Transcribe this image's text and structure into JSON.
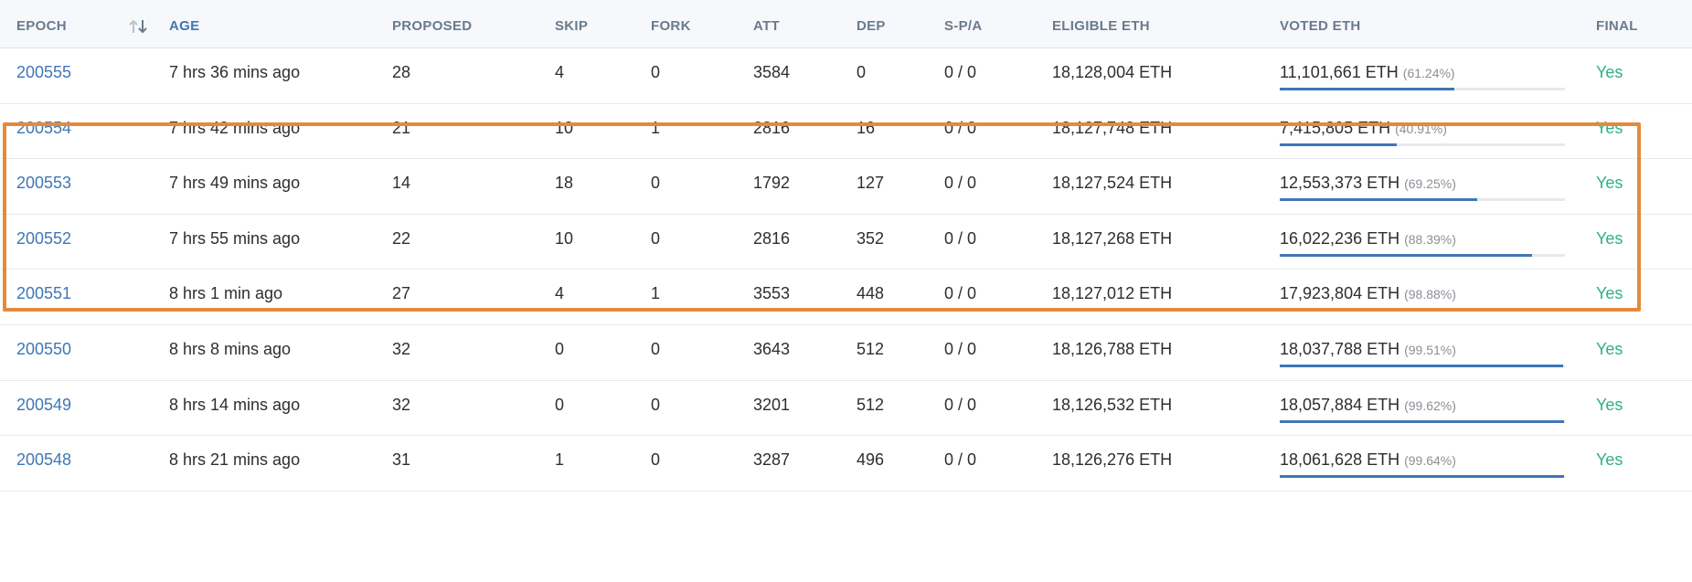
{
  "columns": [
    {
      "key": "epoch",
      "label": "EPOCH"
    },
    {
      "key": "age",
      "label": "AGE"
    },
    {
      "key": "proposed",
      "label": "PROPOSED"
    },
    {
      "key": "skip",
      "label": "SKIP"
    },
    {
      "key": "fork",
      "label": "FORK"
    },
    {
      "key": "att",
      "label": "ATT"
    },
    {
      "key": "dep",
      "label": "DEP"
    },
    {
      "key": "spa",
      "label": "S-P/A"
    },
    {
      "key": "eligible",
      "label": "ELIGIBLE ETH"
    },
    {
      "key": "voted",
      "label": "VOTED ETH"
    },
    {
      "key": "final",
      "label": "FINAL"
    }
  ],
  "sort_icon": "sort-arrows-icon",
  "rows": [
    {
      "epoch": "200555",
      "age": "7 hrs 36 mins ago",
      "proposed": "28",
      "skip": "4",
      "fork": "0",
      "att": "3584",
      "dep": "0",
      "spa": "0 / 0",
      "eligible": "18,128,004 ETH",
      "voted": "11,101,661 ETH",
      "voted_pct": "(61.24%)",
      "voted_fraction": 0.6124,
      "final": "Yes"
    },
    {
      "epoch": "200554",
      "age": "7 hrs 42 mins ago",
      "proposed": "21",
      "skip": "10",
      "fork": "1",
      "att": "2816",
      "dep": "16",
      "spa": "0 / 0",
      "eligible": "18,127,748 ETH",
      "voted": "7,415,805 ETH",
      "voted_pct": "(40.91%)",
      "voted_fraction": 0.4091,
      "final": "Yes"
    },
    {
      "epoch": "200553",
      "age": "7 hrs 49 mins ago",
      "proposed": "14",
      "skip": "18",
      "fork": "0",
      "att": "1792",
      "dep": "127",
      "spa": "0 / 0",
      "eligible": "18,127,524 ETH",
      "voted": "12,553,373 ETH",
      "voted_pct": "(69.25%)",
      "voted_fraction": 0.6925,
      "final": "Yes"
    },
    {
      "epoch": "200552",
      "age": "7 hrs 55 mins ago",
      "proposed": "22",
      "skip": "10",
      "fork": "0",
      "att": "2816",
      "dep": "352",
      "spa": "0 / 0",
      "eligible": "18,127,268 ETH",
      "voted": "16,022,236 ETH",
      "voted_pct": "(88.39%)",
      "voted_fraction": 0.8839,
      "final": "Yes"
    },
    {
      "epoch": "200551",
      "age": "8 hrs 1 min ago",
      "proposed": "27",
      "skip": "4",
      "fork": "1",
      "att": "3553",
      "dep": "448",
      "spa": "0 / 0",
      "eligible": "18,127,012 ETH",
      "voted": "17,923,804 ETH",
      "voted_pct": "(98.88%)",
      "voted_fraction": 0.9888,
      "final": "Yes"
    },
    {
      "epoch": "200550",
      "age": "8 hrs 8 mins ago",
      "proposed": "32",
      "skip": "0",
      "fork": "0",
      "att": "3643",
      "dep": "512",
      "spa": "0 / 0",
      "eligible": "18,126,788 ETH",
      "voted": "18,037,788 ETH",
      "voted_pct": "(99.51%)",
      "voted_fraction": 0.9951,
      "final": "Yes"
    },
    {
      "epoch": "200549",
      "age": "8 hrs 14 mins ago",
      "proposed": "32",
      "skip": "0",
      "fork": "0",
      "att": "3201",
      "dep": "512",
      "spa": "0 / 0",
      "eligible": "18,126,532 ETH",
      "voted": "18,057,884 ETH",
      "voted_pct": "(99.62%)",
      "voted_fraction": 0.9962,
      "final": "Yes"
    },
    {
      "epoch": "200548",
      "age": "8 hrs 21 mins ago",
      "proposed": "31",
      "skip": "1",
      "fork": "0",
      "att": "3287",
      "dep": "496",
      "spa": "0 / 0",
      "eligible": "18,126,276 ETH",
      "voted": "18,061,628 ETH",
      "voted_pct": "(99.64%)",
      "voted_fraction": 0.9964,
      "final": "Yes"
    }
  ],
  "colors": {
    "link": "#3f77b5",
    "final": "#2fb087",
    "highlight": "#e58a3a",
    "bar": "#3f77b5"
  }
}
